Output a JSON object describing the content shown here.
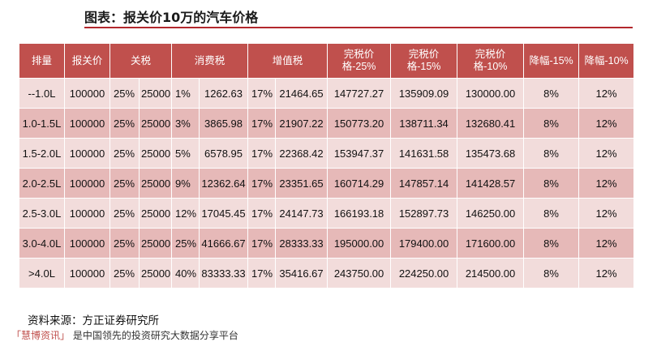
{
  "title": "图表：报关价10万的汽车价格",
  "table": {
    "headers": [
      "排量",
      "报关价",
      "关税",
      "消费税",
      "增值税",
      "完税价格-25%",
      "完税价格-15%",
      "完税价格-10%",
      "降幅-15%",
      "降幅-10%"
    ],
    "rows": [
      {
        "displacement": "--1.0L",
        "declared": "100000",
        "tariff_rate": "25%",
        "tariff": "25000",
        "consumption_rate": "1%",
        "consumption": "1262.63",
        "vat_rate": "17%",
        "vat": "21464.65",
        "price25": "147727.27",
        "price15": "135909.09",
        "price10": "130000.00",
        "drop15": "8%",
        "drop10": "12%"
      },
      {
        "displacement": "1.0-1.5L",
        "declared": "100000",
        "tariff_rate": "25%",
        "tariff": "25000",
        "consumption_rate": "3%",
        "consumption": "3865.98",
        "vat_rate": "17%",
        "vat": "21907.22",
        "price25": "150773.20",
        "price15": "138711.34",
        "price10": "132680.41",
        "drop15": "8%",
        "drop10": "12%"
      },
      {
        "displacement": "1.5-2.0L",
        "declared": "100000",
        "tariff_rate": "25%",
        "tariff": "25000",
        "consumption_rate": "5%",
        "consumption": "6578.95",
        "vat_rate": "17%",
        "vat": "22368.42",
        "price25": "153947.37",
        "price15": "141631.58",
        "price10": "135473.68",
        "drop15": "8%",
        "drop10": "12%"
      },
      {
        "displacement": "2.0-2.5L",
        "declared": "100000",
        "tariff_rate": "25%",
        "tariff": "25000",
        "consumption_rate": "9%",
        "consumption": "12362.64",
        "vat_rate": "17%",
        "vat": "23351.65",
        "price25": "160714.29",
        "price15": "147857.14",
        "price10": "141428.57",
        "drop15": "8%",
        "drop10": "12%"
      },
      {
        "displacement": "2.5-3.0L",
        "declared": "100000",
        "tariff_rate": "25%",
        "tariff": "25000",
        "consumption_rate": "12%",
        "consumption": "17045.45",
        "vat_rate": "17%",
        "vat": "24147.73",
        "price25": "166193.18",
        "price15": "152897.73",
        "price10": "146250.00",
        "drop15": "8%",
        "drop10": "12%"
      },
      {
        "displacement": "3.0-4.0L",
        "declared": "100000",
        "tariff_rate": "25%",
        "tariff": "25000",
        "consumption_rate": "25%",
        "consumption": "41666.67",
        "vat_rate": "17%",
        "vat": "28333.33",
        "price25": "195000.00",
        "price15": "179400.00",
        "price10": "171600.00",
        "drop15": "8%",
        "drop10": "12%"
      },
      {
        "displacement": ">4.0L",
        "declared": "100000",
        "tariff_rate": "25%",
        "tariff": "25000",
        "consumption_rate": "40%",
        "consumption": "83333.33",
        "vat_rate": "17%",
        "vat": "35416.67",
        "price25": "243750.00",
        "price15": "224250.00",
        "price10": "214500.00",
        "drop15": "8%",
        "drop10": "12%"
      }
    ]
  },
  "source": "资料来源：方正证券研究所",
  "footer": {
    "brand": "「慧博资讯」",
    "text": "是中国领先的投资研究大数据分享平台"
  },
  "colors": {
    "header": "#c0504d",
    "row_light": "#f2dcdb",
    "row_dark": "#e6b9b8",
    "title_line": "#b3272d"
  }
}
